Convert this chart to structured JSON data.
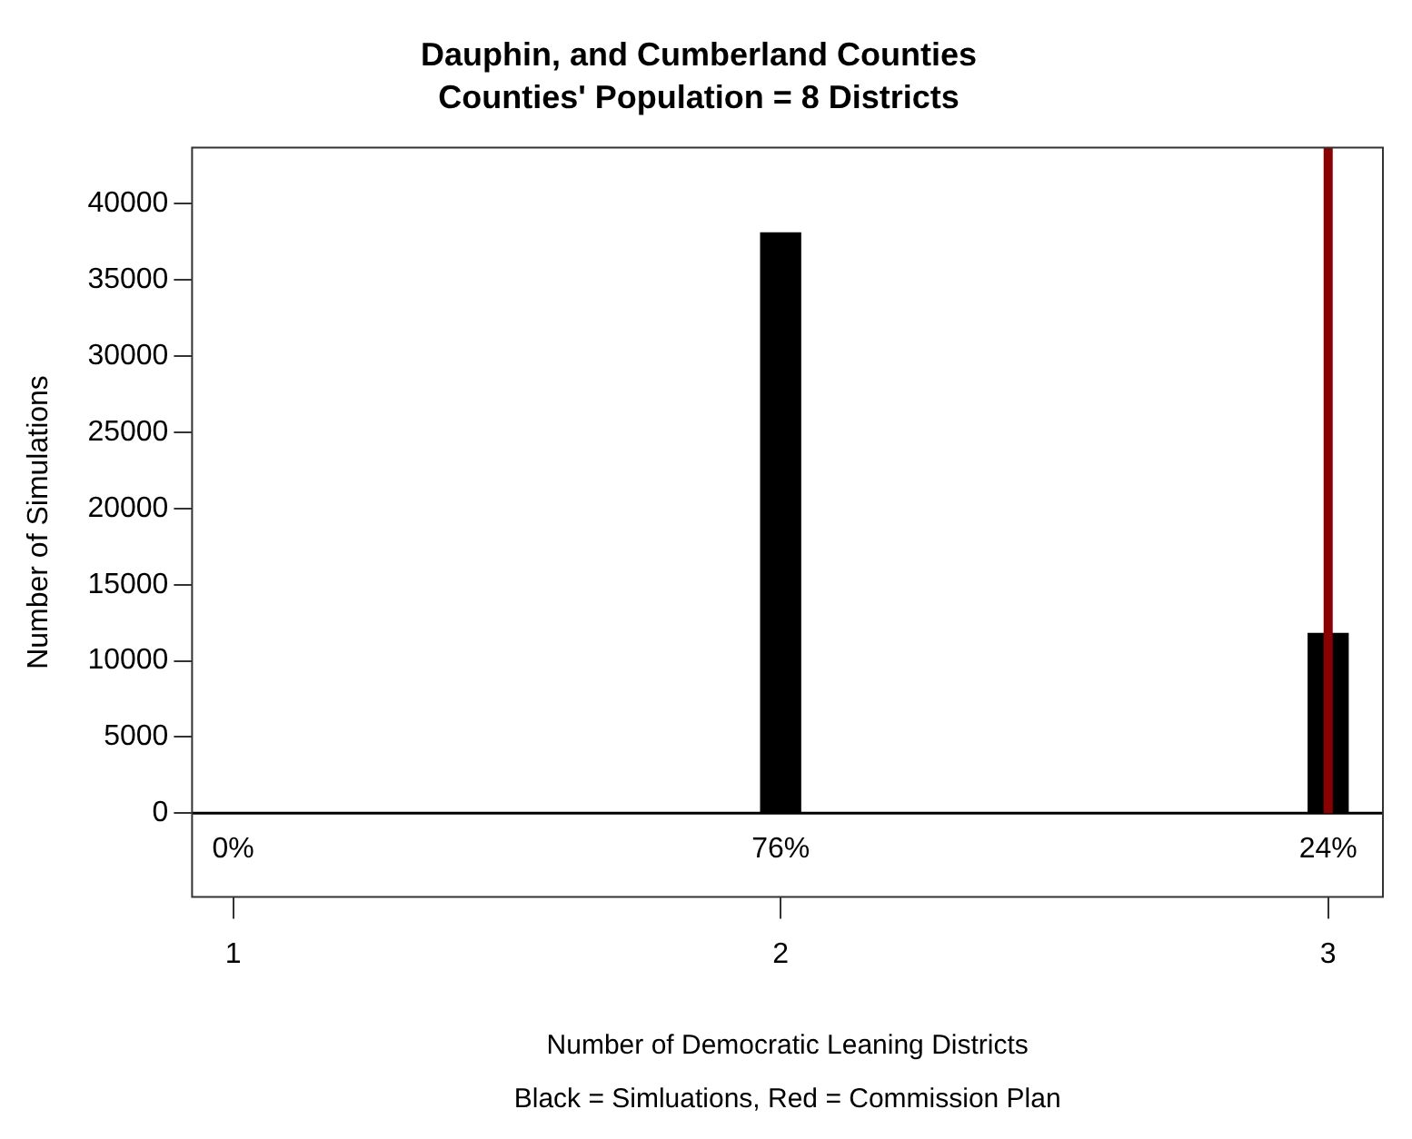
{
  "chart_data": {
    "type": "bar",
    "title": "Dauphin, and Cumberland Counties",
    "subtitle": "Counties' Population = 8 Districts",
    "xlabel": "Number of Democratic Leaning Districts",
    "ylabel": "Number of Simulations",
    "annotations": [
      "Black = Simluations, Red = Commission Plan",
      "0%",
      "76%",
      "24%"
    ],
    "x": [
      1,
      2,
      3
    ],
    "values": [
      0,
      38100,
      11800
    ],
    "color": "#000000",
    "xlim": [
      0.925,
      3.1
    ],
    "xticks": [
      1,
      2,
      3
    ],
    "ylim": [
      -5500,
      43700
    ],
    "yticks": [
      0,
      5000,
      10000,
      15000,
      20000,
      25000,
      30000,
      35000,
      40000
    ],
    "ref_lines": [
      {
        "axis": "x",
        "value": 3,
        "color": "#8b0000"
      },
      {
        "axis": "y",
        "value": 0,
        "color": "#000000"
      }
    ],
    "grid": false,
    "legend": false
  }
}
